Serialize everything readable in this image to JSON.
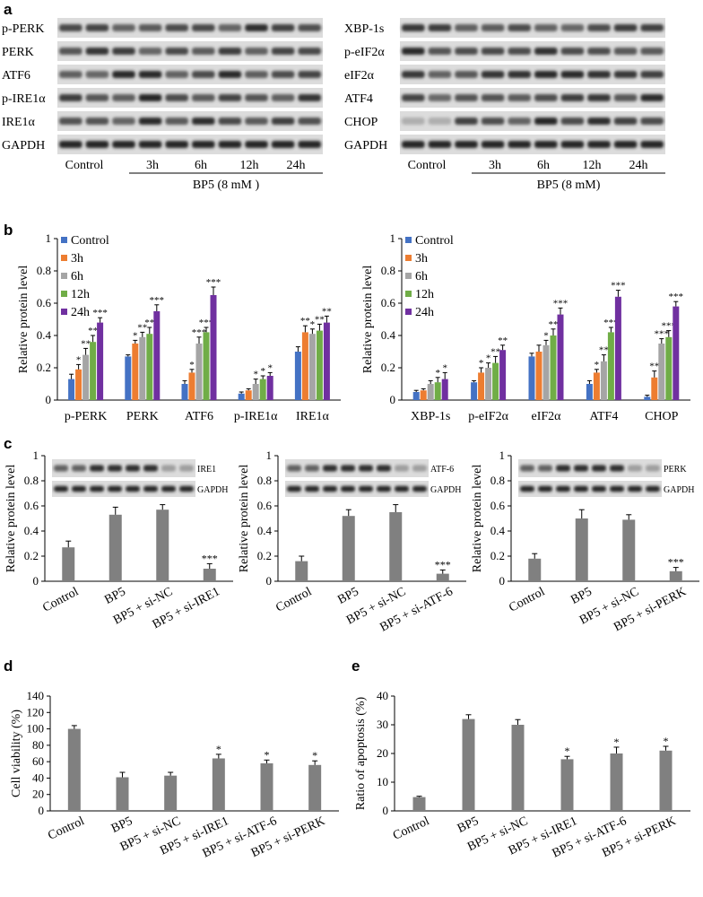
{
  "panels": {
    "a": "a",
    "b": "b",
    "c": "c",
    "d": "d",
    "e": "e"
  },
  "colors": {
    "control": "#4472c4",
    "h3": "#ed7d31",
    "h6": "#a5a5a5",
    "h12": "#70ad47",
    "h24": "#7030a0",
    "gray": "#808080"
  },
  "blots_a": {
    "left": {
      "rows": [
        "p-PERK",
        "PERK",
        "ATF6",
        "p-IRE1α",
        "IRE1α",
        "GAPDH"
      ],
      "lanes": [
        "Control",
        "3h",
        "6h",
        "12h",
        "24h"
      ],
      "treatment": "BP5 (8 mM )"
    },
    "right": {
      "rows": [
        "XBP-1s",
        "p-eIF2α",
        "eIF2α",
        "ATF4",
        "CHOP",
        "GAPDH"
      ],
      "lanes": [
        "Control",
        "3h",
        "6h",
        "12h",
        "24h"
      ],
      "treatment": "BP5 (8 mM)"
    }
  },
  "chart_data": [
    {
      "id": "b-left",
      "type": "bar",
      "categories": [
        "p-PERK",
        "PERK",
        "ATF6",
        "p-IRE1α",
        "IRE1α"
      ],
      "ylabel": "Relative protein level",
      "ylim": [
        0,
        1
      ],
      "yticks": [
        "0",
        "0.2",
        "0.4",
        "0.6",
        "0.8",
        "1"
      ],
      "legend_labels": [
        "Control",
        "3h",
        "6h",
        "12h",
        "24h"
      ],
      "series": [
        {
          "values": [
            0.13,
            0.27,
            0.1,
            0.04,
            0.3
          ],
          "err": [
            0.03,
            0.01,
            0.02,
            0.01,
            0.03
          ],
          "stars": [
            "",
            "",
            "",
            "",
            ""
          ]
        },
        {
          "values": [
            0.19,
            0.35,
            0.17,
            0.06,
            0.42
          ],
          "err": [
            0.03,
            0.02,
            0.02,
            0.01,
            0.04
          ],
          "stars": [
            "*",
            "*",
            "*",
            "",
            "**"
          ]
        },
        {
          "values": [
            0.28,
            0.39,
            0.35,
            0.1,
            0.41
          ],
          "err": [
            0.04,
            0.03,
            0.04,
            0.03,
            0.03
          ],
          "stars": [
            "**",
            "**",
            "***",
            "*",
            "*"
          ]
        },
        {
          "values": [
            0.36,
            0.41,
            0.42,
            0.13,
            0.43
          ],
          "err": [
            0.04,
            0.04,
            0.03,
            0.02,
            0.04
          ],
          "stars": [
            "**",
            "**",
            "***",
            "*",
            "**"
          ]
        },
        {
          "values": [
            0.48,
            0.55,
            0.65,
            0.15,
            0.48
          ],
          "err": [
            0.03,
            0.04,
            0.05,
            0.02,
            0.04
          ],
          "stars": [
            "***",
            "***",
            "***",
            "*",
            "**"
          ]
        }
      ]
    },
    {
      "id": "b-right",
      "type": "bar",
      "categories": [
        "XBP-1s",
        "p-eIF2α",
        "eIF2α",
        "ATF4",
        "CHOP"
      ],
      "ylabel": "Relative protein level",
      "ylim": [
        0,
        1
      ],
      "yticks": [
        "0",
        "0.2",
        "0.4",
        "0.6",
        "0.8",
        "1"
      ],
      "legend_labels": [
        "Control",
        "3h",
        "6h",
        "12h",
        "24h"
      ],
      "series": [
        {
          "values": [
            0.05,
            0.11,
            0.27,
            0.1,
            0.02
          ],
          "err": [
            0.01,
            0.01,
            0.02,
            0.02,
            0.01
          ],
          "stars": [
            "",
            "",
            "",
            "",
            ""
          ]
        },
        {
          "values": [
            0.06,
            0.17,
            0.3,
            0.17,
            0.14
          ],
          "err": [
            0.01,
            0.03,
            0.04,
            0.02,
            0.04
          ],
          "stars": [
            "",
            "*",
            "",
            "*",
            "**"
          ]
        },
        {
          "values": [
            0.1,
            0.2,
            0.34,
            0.24,
            0.35
          ],
          "err": [
            0.02,
            0.03,
            0.03,
            0.04,
            0.03
          ],
          "stars": [
            "",
            "*",
            "*",
            "**",
            "***"
          ]
        },
        {
          "values": [
            0.11,
            0.23,
            0.4,
            0.42,
            0.39
          ],
          "err": [
            0.03,
            0.04,
            0.04,
            0.03,
            0.04
          ],
          "stars": [
            "*",
            "**",
            "**",
            "***",
            "***"
          ]
        },
        {
          "values": [
            0.13,
            0.31,
            0.53,
            0.64,
            0.58
          ],
          "err": [
            0.04,
            0.03,
            0.04,
            0.04,
            0.03
          ],
          "stars": [
            "*",
            "**",
            "***",
            "***",
            "***"
          ]
        }
      ]
    },
    {
      "id": "c1",
      "type": "bar",
      "categories": [
        "Control",
        "BP5",
        "BP5 + si-NC",
        "BP5 + si-IRE1"
      ],
      "values": [
        0.27,
        0.53,
        0.57,
        0.1
      ],
      "err": [
        0.05,
        0.06,
        0.04,
        0.04
      ],
      "stars": [
        "",
        "",
        "",
        "***"
      ],
      "ylabel": "Relative protein level",
      "ylim": [
        0,
        1
      ],
      "yticks": [
        "0",
        "0.2",
        "0.4",
        "0.6",
        "0.8",
        "1"
      ],
      "blot_labels": [
        "IRE1",
        "GAPDH"
      ]
    },
    {
      "id": "c2",
      "type": "bar",
      "categories": [
        "Control",
        "BP5",
        "BP5 + si-NC",
        "BP5 + si-ATF-6"
      ],
      "values": [
        0.16,
        0.52,
        0.55,
        0.06
      ],
      "err": [
        0.04,
        0.05,
        0.06,
        0.03
      ],
      "stars": [
        "",
        "",
        "",
        "***"
      ],
      "ylabel": "Relative protein level",
      "ylim": [
        0,
        1
      ],
      "yticks": [
        "0",
        "0.2",
        "0.4",
        "0.6",
        "0.8",
        "1"
      ],
      "blot_labels": [
        "ATF-6",
        "GAPDH"
      ]
    },
    {
      "id": "c3",
      "type": "bar",
      "categories": [
        "Control",
        "BP5",
        "BP5 + si-NC",
        "BP5 + si-PERK"
      ],
      "values": [
        0.18,
        0.5,
        0.49,
        0.08
      ],
      "err": [
        0.04,
        0.07,
        0.04,
        0.03
      ],
      "stars": [
        "",
        "",
        "",
        "***"
      ],
      "ylabel": "Relative protein level",
      "ylim": [
        0,
        1
      ],
      "yticks": [
        "0",
        "0.2",
        "0.4",
        "0.6",
        "0.8",
        "1"
      ],
      "blot_labels": [
        "PERK",
        "GAPDH"
      ]
    },
    {
      "id": "d",
      "type": "bar",
      "categories": [
        "Control",
        "BP5",
        "BP5 + si-NC",
        "BP5 + si-IRE1",
        "BP5 + si-ATF-6",
        "BP5 + si-PERK"
      ],
      "values": [
        100,
        41,
        43,
        64,
        58,
        56
      ],
      "err": [
        4,
        6,
        4,
        5,
        4,
        5
      ],
      "stars": [
        "",
        "",
        "",
        "*",
        "*",
        "*"
      ],
      "ylabel": "Cell viability (%)",
      "ylim": [
        0,
        140
      ],
      "yticks": [
        "0",
        "20",
        "40",
        "60",
        "80",
        "100",
        "120",
        "140"
      ]
    },
    {
      "id": "e",
      "type": "bar",
      "categories": [
        "Control",
        "BP5",
        "BP5 + si-NC",
        "BP5 + si-IRE1",
        "BP5 + si-ATF-6",
        "BP5 + si-PERK"
      ],
      "values": [
        4.8,
        32,
        30,
        18,
        20,
        21
      ],
      "err": [
        0.3,
        1.5,
        1.8,
        1.0,
        2.2,
        1.5
      ],
      "stars": [
        "",
        "",
        "",
        "*",
        "*",
        "*"
      ],
      "ylabel": "Ratio of apoptosis (%)",
      "ylim": [
        0,
        40
      ],
      "yticks": [
        "0",
        "10",
        "20",
        "30",
        "40"
      ]
    }
  ]
}
